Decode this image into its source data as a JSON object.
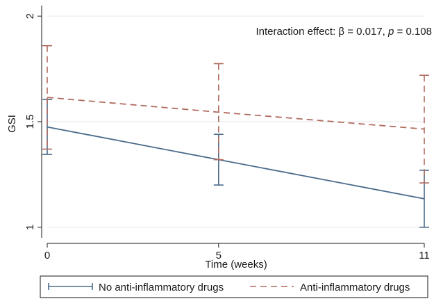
{
  "chart_data": {
    "type": "line",
    "title": "",
    "xlabel": "Time (weeks)",
    "ylabel": "GSI",
    "annotation": {
      "prefix": "Interaction effect: β = 0.017, ",
      "p_symbol": "p",
      "suffix": " = 0.108"
    },
    "x": [
      0,
      5,
      11
    ],
    "x_ticks": [
      0,
      5,
      11
    ],
    "y_ticks": [
      1,
      1.5,
      2
    ],
    "xlim": [
      0,
      11
    ],
    "ylim": [
      0.95,
      2.05
    ],
    "grid": true,
    "legend_position": "bottom",
    "series": [
      {
        "name": "No anti-inflammatory drugs",
        "style": "solid",
        "color": "#4a6a8a",
        "values": [
          1.475,
          1.32,
          1.135
        ],
        "ci_lower": [
          1.345,
          1.2,
          1.0
        ],
        "ci_upper": [
          1.605,
          1.44,
          1.27
        ]
      },
      {
        "name": "Anti-inflammatory drugs",
        "style": "dashed",
        "color": "#b06a5e",
        "values": [
          1.615,
          1.545,
          1.465
        ],
        "ci_lower": [
          1.37,
          1.32,
          1.21
        ],
        "ci_upper": [
          1.86,
          1.775,
          1.72
        ]
      }
    ]
  }
}
